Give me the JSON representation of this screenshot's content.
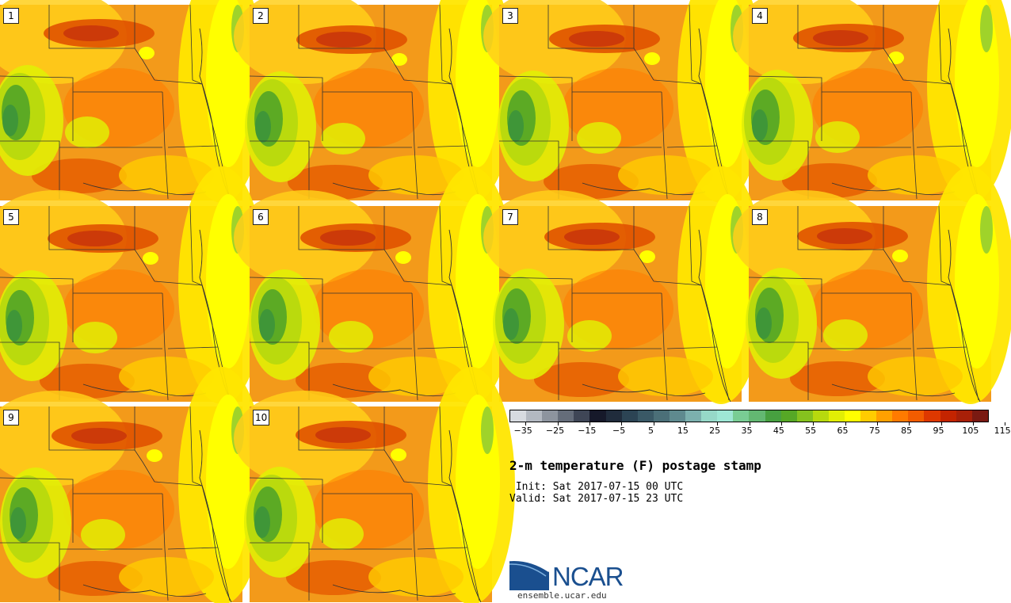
{
  "figure": {
    "title": "2-m temperature (F) postage stamp",
    "init": " Init: Sat 2017-07-15 00 UTC",
    "valid": "Valid: Sat 2017-07-15 23 UTC"
  },
  "stamps": [
    {
      "label": "1"
    },
    {
      "label": "2"
    },
    {
      "label": "3"
    },
    {
      "label": "4"
    },
    {
      "label": "5"
    },
    {
      "label": "6"
    },
    {
      "label": "7"
    },
    {
      "label": "8"
    },
    {
      "label": "9"
    },
    {
      "label": "10"
    }
  ],
  "colorbar": {
    "min": -35,
    "step": 5,
    "colors": [
      "#d7dbe0",
      "#b3b9c1",
      "#8d949e",
      "#656d7a",
      "#3f4656",
      "#16192a",
      "#202c3c",
      "#2c4454",
      "#3a5966",
      "#4b6f78",
      "#5f8a8f",
      "#7cb0ae",
      "#96d8c8",
      "#9ee7d5",
      "#79cd94",
      "#63b872",
      "#47a040",
      "#56a826",
      "#85c21e",
      "#b7d90e",
      "#e2ee05",
      "#ffff00",
      "#ffcc00",
      "#ffa000",
      "#ff7a00",
      "#f25c00",
      "#de3800",
      "#c42400",
      "#a82008",
      "#7a1a12"
    ],
    "tick_labels": [
      "−35",
      "−25",
      "−15",
      "−5",
      "5",
      "15",
      "25",
      "35",
      "45",
      "55",
      "65",
      "75",
      "85",
      "95",
      "105",
      "115"
    ]
  },
  "logo": {
    "name": "NCAR",
    "url": "ensemble.ucar.edu"
  }
}
